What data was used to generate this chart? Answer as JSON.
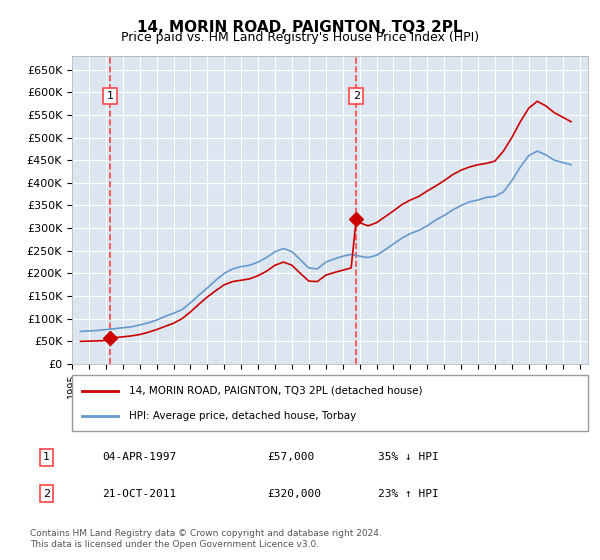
{
  "title": "14, MORIN ROAD, PAIGNTON, TQ3 2PL",
  "subtitle": "Price paid vs. HM Land Registry's House Price Index (HPI)",
  "background_color": "#dce6f0",
  "plot_bg_color": "#dce6f0",
  "ylabel_format": "£{0}K",
  "yticks": [
    0,
    50000,
    100000,
    150000,
    200000,
    250000,
    300000,
    350000,
    400000,
    450000,
    500000,
    550000,
    600000,
    650000
  ],
  "ylim": [
    0,
    680000
  ],
  "xlim_start": 1995.0,
  "xlim_end": 2025.5,
  "purchase1": {
    "date_num": 1997.25,
    "price": 57000,
    "label": "1"
  },
  "purchase2": {
    "date_num": 2011.8,
    "price": 320000,
    "label": "2"
  },
  "legend_line1": "14, MORIN ROAD, PAIGNTON, TQ3 2PL (detached house)",
  "legend_line2": "HPI: Average price, detached house, Torbay",
  "table_rows": [
    {
      "label": "1",
      "date": "04-APR-1997",
      "price": "£57,000",
      "hpi": "35% ↓ HPI"
    },
    {
      "label": "2",
      "date": "21-OCT-2011",
      "price": "£320,000",
      "hpi": "23% ↑ HPI"
    }
  ],
  "footnote": "Contains HM Land Registry data © Crown copyright and database right 2024.\nThis data is licensed under the Open Government Licence v3.0.",
  "line_color_red": "#cc0000",
  "line_color_blue": "#6699cc",
  "marker_color": "#cc0000",
  "dashed_color": "#ff4444",
  "grid_color": "#ffffff",
  "hpi_data": {
    "years": [
      1995.5,
      1996.0,
      1996.5,
      1997.0,
      1997.5,
      1998.0,
      1998.5,
      1999.0,
      1999.5,
      2000.0,
      2000.5,
      2001.0,
      2001.5,
      2002.0,
      2002.5,
      2003.0,
      2003.5,
      2004.0,
      2004.5,
      2005.0,
      2005.5,
      2006.0,
      2006.5,
      2007.0,
      2007.5,
      2008.0,
      2008.5,
      2009.0,
      2009.5,
      2010.0,
      2010.5,
      2011.0,
      2011.5,
      2012.0,
      2012.5,
      2013.0,
      2013.5,
      2014.0,
      2014.5,
      2015.0,
      2015.5,
      2016.0,
      2016.5,
      2017.0,
      2017.5,
      2018.0,
      2018.5,
      2019.0,
      2019.5,
      2020.0,
      2020.5,
      2021.0,
      2021.5,
      2022.0,
      2022.5,
      2023.0,
      2023.5,
      2024.0,
      2024.5
    ],
    "values": [
      72000,
      73000,
      74000,
      76000,
      78000,
      80000,
      82000,
      86000,
      91000,
      97000,
      105000,
      112000,
      120000,
      135000,
      152000,
      168000,
      185000,
      200000,
      210000,
      215000,
      218000,
      225000,
      235000,
      248000,
      255000,
      248000,
      230000,
      212000,
      210000,
      225000,
      232000,
      238000,
      242000,
      238000,
      235000,
      240000,
      252000,
      265000,
      278000,
      288000,
      295000,
      305000,
      318000,
      328000,
      340000,
      350000,
      358000,
      362000,
      368000,
      370000,
      380000,
      405000,
      435000,
      460000,
      470000,
      462000,
      450000,
      445000,
      440000
    ]
  },
  "price_line_data": {
    "years": [
      1995.5,
      1996.0,
      1996.5,
      1997.0,
      1997.25,
      1997.5,
      1998.0,
      1998.5,
      1999.0,
      1999.5,
      2000.0,
      2000.5,
      2001.0,
      2001.5,
      2002.0,
      2002.5,
      2003.0,
      2003.5,
      2004.0,
      2004.5,
      2005.0,
      2005.5,
      2006.0,
      2006.5,
      2007.0,
      2007.5,
      2008.0,
      2008.5,
      2009.0,
      2009.5,
      2010.0,
      2010.5,
      2011.0,
      2011.5,
      2011.8,
      2012.0,
      2012.5,
      2013.0,
      2013.5,
      2014.0,
      2014.5,
      2015.0,
      2015.5,
      2016.0,
      2016.5,
      2017.0,
      2017.5,
      2018.0,
      2018.5,
      2019.0,
      2019.5,
      2020.0,
      2020.5,
      2021.0,
      2021.5,
      2022.0,
      2022.5,
      2023.0,
      2023.5,
      2024.0,
      2024.5
    ],
    "values": [
      50000,
      50500,
      51000,
      52000,
      57000,
      58000,
      60000,
      62000,
      65000,
      70000,
      76000,
      83000,
      90000,
      100000,
      115000,
      132000,
      148000,
      162000,
      175000,
      182000,
      185000,
      188000,
      195000,
      205000,
      218000,
      225000,
      218000,
      200000,
      183000,
      182000,
      196000,
      202000,
      207000,
      212000,
      320000,
      312000,
      305000,
      312000,
      325000,
      338000,
      352000,
      362000,
      370000,
      382000,
      393000,
      405000,
      418000,
      428000,
      435000,
      440000,
      443000,
      448000,
      470000,
      500000,
      535000,
      565000,
      580000,
      570000,
      555000,
      545000,
      535000
    ]
  }
}
